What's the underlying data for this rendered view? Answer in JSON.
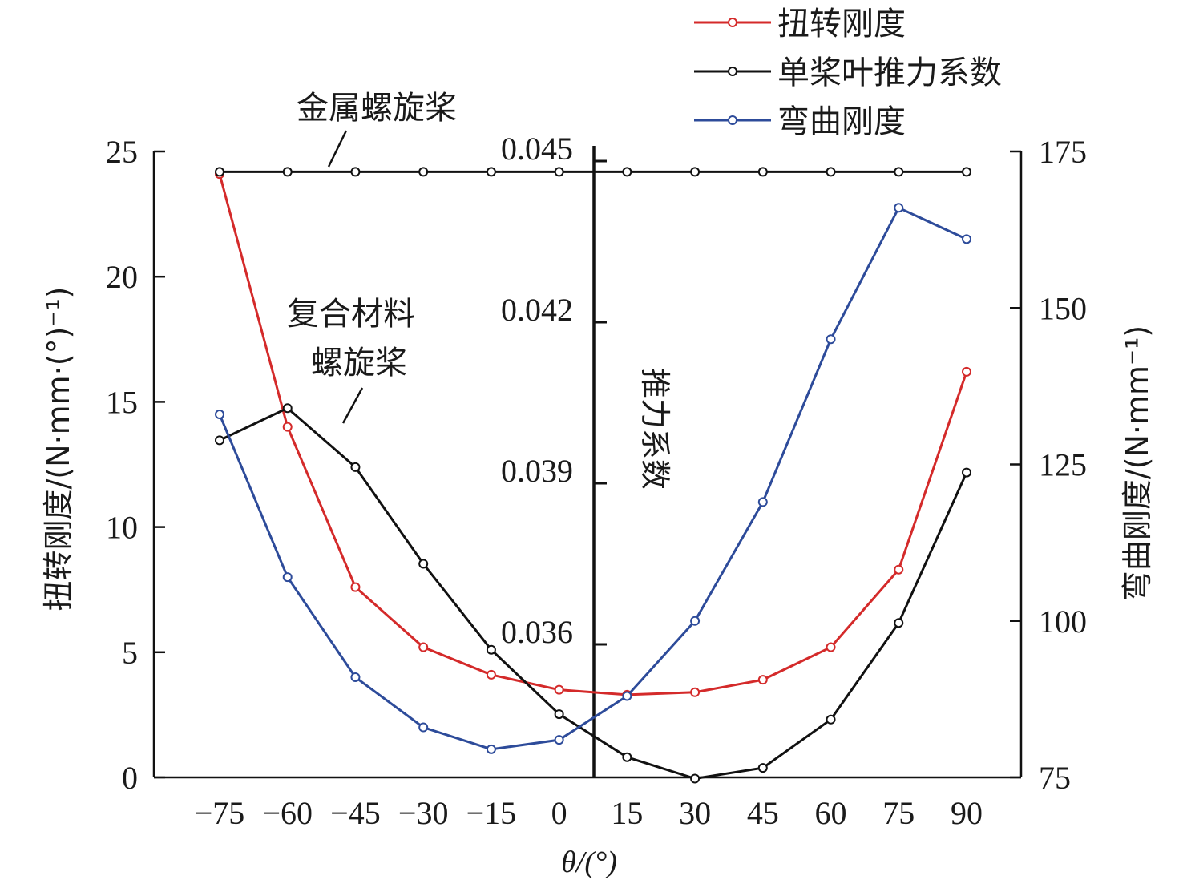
{
  "chart_data": {
    "type": "line",
    "xlabel": "θ/(°)",
    "ylabel_left": "扭转刚度/(N·mm·(°)⁻¹)",
    "ylabel_right": "弯曲刚度/(N·mm⁻¹)",
    "ylabel_middle": "推力系数",
    "categories": [
      "−75",
      "−60",
      "−45",
      "−30",
      "−15",
      "0",
      "15",
      "30",
      "45",
      "60",
      "75",
      "90"
    ],
    "x": [
      -75,
      -60,
      -45,
      -30,
      -15,
      0,
      15,
      30,
      45,
      60,
      75,
      90
    ],
    "left_axis": {
      "range": [
        0,
        25
      ],
      "ticks": [
        "0",
        "5",
        "10",
        "15",
        "20",
        "25"
      ]
    },
    "middle_axis": {
      "range": [
        0.033,
        0.045
      ],
      "ticks": [
        "0.036",
        "0.039",
        "0.042",
        "0.045"
      ]
    },
    "right_axis": {
      "range": [
        75,
        175
      ],
      "ticks": [
        "75",
        "100",
        "125",
        "150",
        "175"
      ]
    },
    "legend": {
      "placement": "top-right",
      "entries": [
        "扭转刚度",
        "单桨叶推力系数",
        "弯曲刚度"
      ]
    },
    "annotations": {
      "metal": "金属螺旋桨",
      "composite_line1": "复合材料",
      "composite_line2": "螺旋桨"
    },
    "colors": {
      "torsion": "#d42a2a",
      "thrust": "#111111",
      "bending": "#2d4b9a"
    },
    "series": [
      {
        "name": "扭转刚度",
        "axis": "left",
        "color": "#d42a2a",
        "values": [
          24.1,
          14.0,
          7.6,
          5.2,
          4.1,
          3.5,
          3.3,
          3.4,
          3.9,
          5.2,
          8.3,
          16.2
        ]
      },
      {
        "name": "单桨叶推力系数",
        "axis": "middle",
        "color": "#111111",
        "values": [
          0.0398,
          0.0404,
          0.0393,
          0.0375,
          0.0359,
          0.0347,
          0.0339,
          0.0335,
          0.0337,
          0.0346,
          0.0364,
          0.0392
        ]
      },
      {
        "name": "弯曲刚度",
        "axis": "right",
        "color": "#2d4b9a",
        "values": [
          133,
          107,
          91,
          83,
          79.5,
          81,
          88,
          100,
          119,
          145,
          166,
          161
        ]
      },
      {
        "name": "",
        "axis": "middle",
        "color": "#111111",
        "values": [
          0.0448,
          0.0448,
          0.0448,
          0.0448,
          0.0448,
          0.0448,
          0.0448,
          0.0448,
          0.0448,
          0.0448,
          0.0448,
          0.0448
        ]
      }
    ]
  }
}
